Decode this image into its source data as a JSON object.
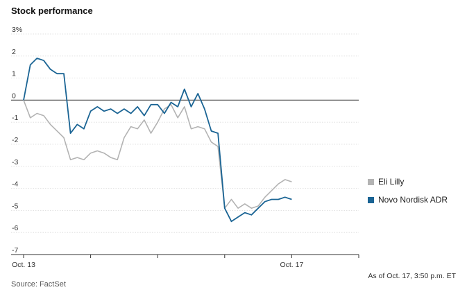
{
  "title": "Stock performance",
  "source": "Source: FactSet",
  "as_of": "As of Oct. 17, 3:50 p.m. ET",
  "chart_data": {
    "type": "line",
    "title": "Stock performance",
    "xlabel": "",
    "ylabel": "",
    "ylim": [
      -7,
      3
    ],
    "y_ticks": [
      3,
      2,
      1,
      0,
      -1,
      -2,
      -3,
      -4,
      -5,
      -6,
      -7
    ],
    "y_tick_labels": [
      "3%",
      "2",
      "1",
      "0",
      "-1",
      "-2",
      "-3",
      "-4",
      "-5",
      "-6",
      "-7"
    ],
    "x_tick_labels": [
      "Oct. 13",
      "Oct. 17"
    ],
    "grid": "horizontal",
    "legend_position": "right",
    "x": [
      0,
      0.5,
      1.0,
      1.5,
      2.0,
      2.5,
      3.0,
      3.5,
      4.0,
      4.5,
      5.0,
      5.5,
      6.0,
      6.5,
      7.0,
      7.5,
      8.0,
      8.5,
      9.0,
      9.5,
      10.0,
      10.5,
      11.0,
      11.5,
      12.0,
      12.5,
      13.0,
      13.5,
      14.0,
      14.5,
      15.0,
      15.5,
      16.0,
      16.5,
      17.0,
      17.5,
      18.0,
      18.5,
      19.0,
      19.5,
      20.0,
      20.5,
      21.0,
      21.5,
      22.0,
      22.5,
      23.0,
      23.5,
      24.0,
      24.5,
      25.0
    ],
    "series": [
      {
        "name": "Eli Lilly",
        "color": "#b3b3b3",
        "values": [
          0.0,
          -0.8,
          -0.6,
          -0.7,
          -1.1,
          -1.4,
          -1.7,
          -2.7,
          -2.6,
          -2.7,
          -2.4,
          -2.3,
          -2.4,
          -2.6,
          -2.7,
          -1.7,
          -1.2,
          -1.3,
          -0.9,
          -1.5,
          -1.0,
          -0.4,
          -0.2,
          -0.8,
          -0.3,
          -1.3,
          -1.2,
          -1.3,
          -1.9,
          -2.1,
          -4.9,
          -4.5,
          -4.9,
          -4.7,
          -4.9,
          -4.8,
          -4.4,
          -4.1,
          -3.8,
          -3.6,
          -3.7,
          -3.7,
          -3.7,
          -3.7,
          -3.7,
          -3.7,
          -3.7,
          -3.7,
          -3.7,
          -3.7,
          -3.7
        ],
        "visible_points": 41
      },
      {
        "name": "Novo Nordisk ADR",
        "color": "#1a6494",
        "values": [
          0.0,
          1.6,
          1.9,
          1.8,
          1.4,
          1.2,
          1.2,
          -1.5,
          -1.1,
          -1.3,
          -0.5,
          -0.3,
          -0.5,
          -0.4,
          -0.6,
          -0.4,
          -0.6,
          -0.3,
          -0.7,
          -0.2,
          -0.2,
          -0.6,
          -0.1,
          -0.3,
          0.5,
          -0.3,
          0.3,
          -0.4,
          -1.4,
          -1.5,
          -4.9,
          -5.5,
          -5.3,
          -5.1,
          -5.2,
          -4.9,
          -4.6,
          -4.5,
          -4.5,
          -4.4,
          -4.5,
          -4.5,
          -4.5,
          -4.5,
          -4.5,
          -4.5,
          -4.5,
          -4.5,
          -4.5,
          -4.5,
          -4.5
        ],
        "visible_points": 41
      }
    ]
  }
}
